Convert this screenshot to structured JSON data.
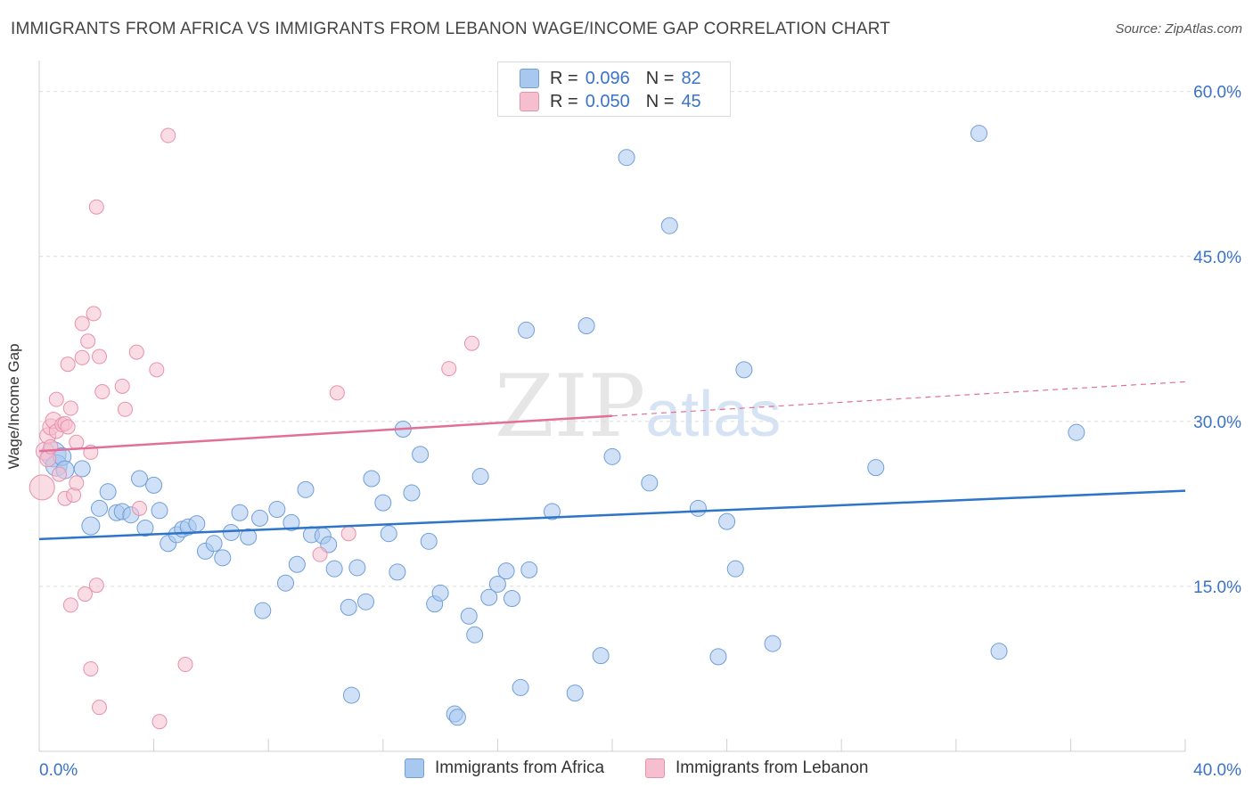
{
  "header": {
    "title": "IMMIGRANTS FROM AFRICA VS IMMIGRANTS FROM LEBANON WAGE/INCOME GAP CORRELATION CHART",
    "source": "Source: ZipAtlas.com"
  },
  "watermark": {
    "zip": "ZIP",
    "atlas": "atlas"
  },
  "legend_top": {
    "africa": {
      "r_label": "R =",
      "r_value": "0.096",
      "n_label": "N =",
      "n_value": "82"
    },
    "lebanon": {
      "r_label": "R =",
      "r_value": "0.050",
      "n_label": "N =",
      "n_value": "45"
    }
  },
  "legend_bottom": {
    "africa": "Immigrants from Africa",
    "lebanon": "Immigrants from Lebanon"
  },
  "colors": {
    "africa_fill": "#a9c8f0",
    "africa_stroke": "#6f9fd8",
    "africa_line": "#2e74c9",
    "lebanon_fill": "#f6bfd0",
    "lebanon_stroke": "#e891ad",
    "lebanon_line": "#e26f97",
    "axis_text": "#3a73c9",
    "grid": "#dcdcdc"
  },
  "chart_data": {
    "type": "scatter",
    "title": "IMMIGRANTS FROM AFRICA VS IMMIGRANTS FROM LEBANON WAGE/INCOME GAP CORRELATION CHART",
    "xlabel": "",
    "ylabel": "Wage/Income Gap",
    "xlim": [
      0,
      40
    ],
    "ylim": [
      0,
      62
    ],
    "x_tick_labels": [
      "0.0%",
      "40.0%"
    ],
    "y_ticks": [
      15,
      30,
      45,
      60
    ],
    "y_tick_labels": [
      "15.0%",
      "30.0%",
      "45.0%",
      "60.0%"
    ],
    "grid": true,
    "legend_position": "top-center",
    "series": [
      {
        "name": "Immigrants from Africa",
        "trend": {
          "x": [
            0,
            40
          ],
          "y": [
            19.3,
            23.7
          ]
        },
        "points": [
          {
            "x": 0.5,
            "y": 27.0,
            "s": 14
          },
          {
            "x": 0.6,
            "y": 26.0,
            "s": 12
          },
          {
            "x": 0.8,
            "y": 26.8,
            "s": 10
          },
          {
            "x": 0.9,
            "y": 25.6,
            "s": 10
          },
          {
            "x": 1.5,
            "y": 25.7,
            "s": 9
          },
          {
            "x": 1.8,
            "y": 20.5,
            "s": 10
          },
          {
            "x": 2.1,
            "y": 22.1,
            "s": 9
          },
          {
            "x": 2.4,
            "y": 23.6,
            "s": 9
          },
          {
            "x": 2.7,
            "y": 21.7,
            "s": 9
          },
          {
            "x": 2.9,
            "y": 21.8,
            "s": 9
          },
          {
            "x": 3.2,
            "y": 21.5,
            "s": 9
          },
          {
            "x": 3.5,
            "y": 24.8,
            "s": 9
          },
          {
            "x": 3.7,
            "y": 20.3,
            "s": 9
          },
          {
            "x": 4.0,
            "y": 24.2,
            "s": 9
          },
          {
            "x": 4.2,
            "y": 21.9,
            "s": 9
          },
          {
            "x": 4.5,
            "y": 18.9,
            "s": 9
          },
          {
            "x": 4.8,
            "y": 19.7,
            "s": 9
          },
          {
            "x": 5.0,
            "y": 20.2,
            "s": 9
          },
          {
            "x": 5.2,
            "y": 20.4,
            "s": 9
          },
          {
            "x": 5.5,
            "y": 20.7,
            "s": 9
          },
          {
            "x": 5.8,
            "y": 18.2,
            "s": 9
          },
          {
            "x": 6.1,
            "y": 18.9,
            "s": 9
          },
          {
            "x": 6.4,
            "y": 17.6,
            "s": 9
          },
          {
            "x": 6.7,
            "y": 19.9,
            "s": 9
          },
          {
            "x": 7.0,
            "y": 21.7,
            "s": 9
          },
          {
            "x": 7.3,
            "y": 19.5,
            "s": 9
          },
          {
            "x": 7.7,
            "y": 21.2,
            "s": 9
          },
          {
            "x": 7.8,
            "y": 12.8,
            "s": 9
          },
          {
            "x": 8.3,
            "y": 22.0,
            "s": 9
          },
          {
            "x": 8.6,
            "y": 15.3,
            "s": 9
          },
          {
            "x": 8.8,
            "y": 20.8,
            "s": 9
          },
          {
            "x": 9.0,
            "y": 17.0,
            "s": 9
          },
          {
            "x": 9.3,
            "y": 23.8,
            "s": 9
          },
          {
            "x": 9.5,
            "y": 19.7,
            "s": 9
          },
          {
            "x": 9.9,
            "y": 19.6,
            "s": 9
          },
          {
            "x": 10.1,
            "y": 18.8,
            "s": 9
          },
          {
            "x": 10.3,
            "y": 16.6,
            "s": 9
          },
          {
            "x": 10.8,
            "y": 13.1,
            "s": 9
          },
          {
            "x": 10.9,
            "y": 5.1,
            "s": 9
          },
          {
            "x": 11.1,
            "y": 16.7,
            "s": 9
          },
          {
            "x": 11.4,
            "y": 13.6,
            "s": 9
          },
          {
            "x": 11.6,
            "y": 24.8,
            "s": 9
          },
          {
            "x": 12.0,
            "y": 22.6,
            "s": 9
          },
          {
            "x": 12.2,
            "y": 19.8,
            "s": 9
          },
          {
            "x": 12.5,
            "y": 16.3,
            "s": 9
          },
          {
            "x": 12.7,
            "y": 29.3,
            "s": 9
          },
          {
            "x": 13.0,
            "y": 23.5,
            "s": 9
          },
          {
            "x": 13.3,
            "y": 27.0,
            "s": 9
          },
          {
            "x": 13.6,
            "y": 19.1,
            "s": 9
          },
          {
            "x": 13.8,
            "y": 13.4,
            "s": 9
          },
          {
            "x": 14.0,
            "y": 14.4,
            "s": 9
          },
          {
            "x": 14.5,
            "y": 3.4,
            "s": 9
          },
          {
            "x": 14.6,
            "y": 3.1,
            "s": 9
          },
          {
            "x": 15.0,
            "y": 12.3,
            "s": 9
          },
          {
            "x": 15.2,
            "y": 10.6,
            "s": 9
          },
          {
            "x": 15.4,
            "y": 25.0,
            "s": 9
          },
          {
            "x": 15.7,
            "y": 14.0,
            "s": 9
          },
          {
            "x": 16.0,
            "y": 15.2,
            "s": 9
          },
          {
            "x": 16.3,
            "y": 16.4,
            "s": 9
          },
          {
            "x": 16.5,
            "y": 13.9,
            "s": 9
          },
          {
            "x": 16.8,
            "y": 5.8,
            "s": 9
          },
          {
            "x": 17.0,
            "y": 38.3,
            "s": 9
          },
          {
            "x": 17.1,
            "y": 16.5,
            "s": 9
          },
          {
            "x": 17.9,
            "y": 21.8,
            "s": 9
          },
          {
            "x": 18.7,
            "y": 5.3,
            "s": 9
          },
          {
            "x": 19.1,
            "y": 38.7,
            "s": 9
          },
          {
            "x": 19.6,
            "y": 8.7,
            "s": 9
          },
          {
            "x": 20.0,
            "y": 26.8,
            "s": 9
          },
          {
            "x": 20.5,
            "y": 54.0,
            "s": 9
          },
          {
            "x": 21.3,
            "y": 24.4,
            "s": 9
          },
          {
            "x": 22.0,
            "y": 47.8,
            "s": 9
          },
          {
            "x": 23.0,
            "y": 22.1,
            "s": 9
          },
          {
            "x": 23.7,
            "y": 8.6,
            "s": 9
          },
          {
            "x": 24.0,
            "y": 20.9,
            "s": 9
          },
          {
            "x": 24.3,
            "y": 16.6,
            "s": 9
          },
          {
            "x": 24.6,
            "y": 34.7,
            "s": 9
          },
          {
            "x": 25.6,
            "y": 9.8,
            "s": 9
          },
          {
            "x": 29.2,
            "y": 25.8,
            "s": 9
          },
          {
            "x": 32.8,
            "y": 56.2,
            "s": 9
          },
          {
            "x": 33.5,
            "y": 9.1,
            "s": 9
          },
          {
            "x": 36.2,
            "y": 29.0,
            "s": 9
          }
        ]
      },
      {
        "name": "Immigrants from Lebanon",
        "trend": {
          "x": [
            0,
            20
          ],
          "y": [
            27.3,
            30.5
          ]
        },
        "trend_dashed": {
          "x": [
            20,
            40
          ],
          "y": [
            30.5,
            33.6
          ]
        },
        "points": [
          {
            "x": 0.1,
            "y": 24.0,
            "s": 14
          },
          {
            "x": 0.2,
            "y": 27.3,
            "s": 10
          },
          {
            "x": 0.3,
            "y": 28.7,
            "s": 9
          },
          {
            "x": 0.3,
            "y": 26.6,
            "s": 9
          },
          {
            "x": 0.4,
            "y": 29.5,
            "s": 9
          },
          {
            "x": 0.4,
            "y": 27.7,
            "s": 8
          },
          {
            "x": 0.5,
            "y": 30.1,
            "s": 9
          },
          {
            "x": 0.6,
            "y": 29.1,
            "s": 8
          },
          {
            "x": 0.6,
            "y": 32.0,
            "s": 8
          },
          {
            "x": 0.7,
            "y": 25.2,
            "s": 8
          },
          {
            "x": 0.8,
            "y": 29.7,
            "s": 8
          },
          {
            "x": 0.9,
            "y": 29.8,
            "s": 8
          },
          {
            "x": 0.9,
            "y": 23.0,
            "s": 8
          },
          {
            "x": 1.0,
            "y": 35.2,
            "s": 8
          },
          {
            "x": 1.0,
            "y": 29.5,
            "s": 8
          },
          {
            "x": 1.1,
            "y": 13.3,
            "s": 8
          },
          {
            "x": 1.1,
            "y": 31.2,
            "s": 8
          },
          {
            "x": 1.2,
            "y": 23.3,
            "s": 8
          },
          {
            "x": 1.3,
            "y": 28.1,
            "s": 8
          },
          {
            "x": 1.3,
            "y": 24.4,
            "s": 8
          },
          {
            "x": 1.5,
            "y": 38.9,
            "s": 8
          },
          {
            "x": 1.5,
            "y": 35.8,
            "s": 8
          },
          {
            "x": 1.6,
            "y": 14.3,
            "s": 8
          },
          {
            "x": 1.7,
            "y": 37.3,
            "s": 8
          },
          {
            "x": 1.8,
            "y": 27.2,
            "s": 8
          },
          {
            "x": 1.8,
            "y": 7.5,
            "s": 8
          },
          {
            "x": 1.9,
            "y": 39.8,
            "s": 8
          },
          {
            "x": 2.0,
            "y": 15.1,
            "s": 8
          },
          {
            "x": 2.0,
            "y": 49.5,
            "s": 8
          },
          {
            "x": 2.1,
            "y": 4.0,
            "s": 8
          },
          {
            "x": 2.1,
            "y": 35.9,
            "s": 8
          },
          {
            "x": 2.2,
            "y": 32.7,
            "s": 8
          },
          {
            "x": 2.9,
            "y": 33.2,
            "s": 8
          },
          {
            "x": 3.0,
            "y": 31.1,
            "s": 8
          },
          {
            "x": 3.4,
            "y": 36.3,
            "s": 8
          },
          {
            "x": 3.5,
            "y": 22.1,
            "s": 8
          },
          {
            "x": 4.1,
            "y": 34.7,
            "s": 8
          },
          {
            "x": 4.2,
            "y": 2.7,
            "s": 8
          },
          {
            "x": 4.5,
            "y": 56.0,
            "s": 8
          },
          {
            "x": 5.1,
            "y": 7.9,
            "s": 8
          },
          {
            "x": 9.8,
            "y": 17.9,
            "s": 8
          },
          {
            "x": 10.4,
            "y": 32.6,
            "s": 8
          },
          {
            "x": 10.8,
            "y": 19.8,
            "s": 8
          },
          {
            "x": 14.3,
            "y": 34.8,
            "s": 8
          },
          {
            "x": 15.1,
            "y": 37.1,
            "s": 8
          }
        ]
      }
    ]
  }
}
